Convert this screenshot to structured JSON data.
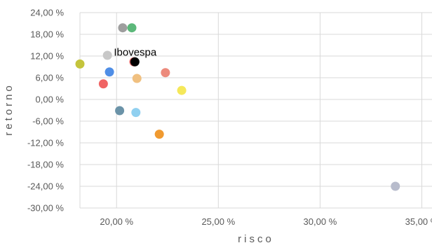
{
  "chart_data": {
    "type": "scatter",
    "xlabel": "risco",
    "ylabel": "retorno",
    "xlim": [
      18.2,
      35.5
    ],
    "ylim": [
      -30,
      24
    ],
    "x_ticks": [
      20,
      25,
      30,
      35
    ],
    "y_ticks": [
      24,
      18,
      12,
      6,
      0,
      -6,
      -12,
      -18,
      -24,
      -30
    ],
    "x_tick_labels": [
      "20,00 %",
      "25,00 %",
      "30,00 %",
      "35,00 %"
    ],
    "y_tick_labels": [
      "24,00 %",
      "18,00 %",
      "12,00 %",
      "6,00 %",
      "0,00 %",
      "-6,00 %",
      "-12,00 %",
      "-18,00 %",
      "-24,00 %",
      "-30,00 %"
    ],
    "grid": true,
    "points": [
      {
        "x": 20.3,
        "y": 19.8,
        "color": "#9e9e9e"
      },
      {
        "x": 20.75,
        "y": 19.8,
        "color": "#5cb87a"
      },
      {
        "x": 19.55,
        "y": 12.2,
        "color": "#c8c8c8"
      },
      {
        "x": 18.2,
        "y": 9.8,
        "color": "#c4c43c"
      },
      {
        "x": 20.85,
        "y": 10.4,
        "color": "#e87070"
      },
      {
        "x": 20.9,
        "y": 10.4,
        "color": "#000000",
        "label": "Ibovespa"
      },
      {
        "x": 19.65,
        "y": 7.6,
        "color": "#4f8ee6"
      },
      {
        "x": 21.0,
        "y": 5.8,
        "color": "#f0c080"
      },
      {
        "x": 22.4,
        "y": 7.4,
        "color": "#ec8a7c"
      },
      {
        "x": 19.35,
        "y": 4.3,
        "color": "#f06464"
      },
      {
        "x": 23.2,
        "y": 2.5,
        "color": "#f5e85a"
      },
      {
        "x": 20.15,
        "y": -3.1,
        "color": "#6b93a8"
      },
      {
        "x": 20.95,
        "y": -3.6,
        "color": "#90d0f0"
      },
      {
        "x": 22.1,
        "y": -9.6,
        "color": "#f09a30"
      },
      {
        "x": 33.7,
        "y": -24.0,
        "color": "#b8bccc"
      }
    ]
  }
}
